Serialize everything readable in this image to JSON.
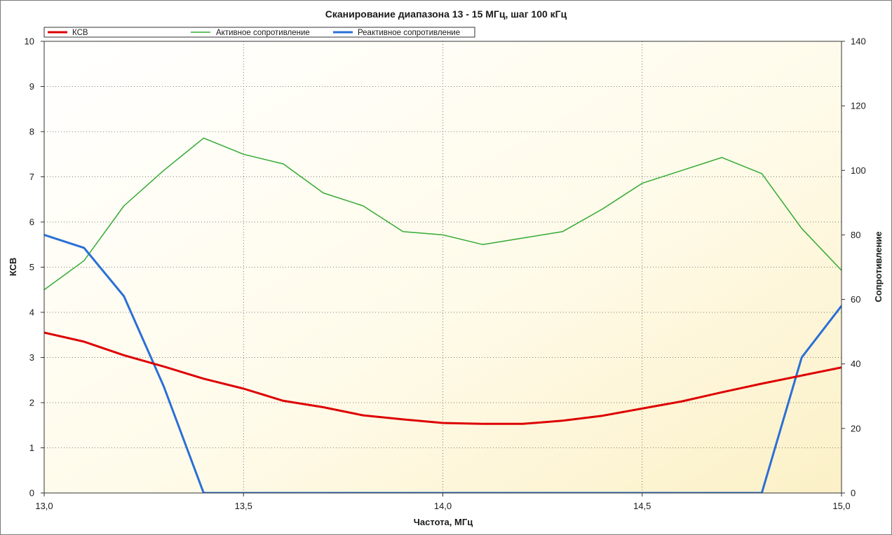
{
  "chart_data": {
    "type": "line",
    "title": "Сканирование диапазона 13 - 15 МГц, шаг 100 кГц",
    "xlabel": "Частота, МГц",
    "ylabel_left": "КСВ",
    "ylabel_right": "Сопротивление",
    "xlim": [
      13.0,
      15.0
    ],
    "ylim_left": [
      0,
      10
    ],
    "ylim_right": [
      0,
      140
    ],
    "x_ticks": [
      13.0,
      13.5,
      14.0,
      14.5,
      15.0
    ],
    "x_tick_labels": [
      "13,0",
      "13,5",
      "14,0",
      "14,5",
      "15,0"
    ],
    "y_left_ticks": [
      0,
      1,
      2,
      3,
      4,
      5,
      6,
      7,
      8,
      9,
      10
    ],
    "y_left_tick_labels": [
      "0",
      "1",
      "2",
      "3",
      "4",
      "5",
      "6",
      "7",
      "8",
      "9",
      "10"
    ],
    "y_right_ticks": [
      0,
      20,
      40,
      60,
      80,
      100,
      120,
      140
    ],
    "y_right_tick_labels": [
      "0",
      "20",
      "40",
      "60",
      "80",
      "100",
      "120",
      "140"
    ],
    "grid": true,
    "legend_position": "top-left",
    "x": [
      13.0,
      13.1,
      13.2,
      13.3,
      13.4,
      13.5,
      13.6,
      13.7,
      13.8,
      13.9,
      14.0,
      14.1,
      14.2,
      14.3,
      14.4,
      14.5,
      14.6,
      14.7,
      14.8,
      14.9,
      15.0
    ],
    "series": [
      {
        "name": "КСВ",
        "axis": "left",
        "color": "#dd0000",
        "values": [
          3.55,
          3.35,
          3.05,
          2.8,
          2.53,
          2.31,
          2.04,
          1.9,
          1.72,
          1.63,
          1.55,
          1.53,
          1.53,
          1.6,
          1.71,
          1.87,
          2.03,
          2.23,
          2.42,
          2.6,
          2.78
        ]
      },
      {
        "name": "Активное сопротивление",
        "axis": "right",
        "color": "#33aa33",
        "values": [
          63,
          72,
          89,
          100,
          110,
          105,
          102,
          93,
          89,
          81,
          80,
          77,
          79,
          81,
          88,
          96,
          100,
          104,
          99,
          82,
          69
        ]
      },
      {
        "name": "Реактивное сопротивление",
        "axis": "right",
        "color": "#2a6fd6",
        "values": [
          80,
          76,
          61,
          33,
          0,
          0,
          0,
          0,
          0,
          0,
          0,
          0,
          0,
          0,
          0,
          0,
          0,
          0,
          0,
          42,
          58
        ]
      }
    ]
  }
}
